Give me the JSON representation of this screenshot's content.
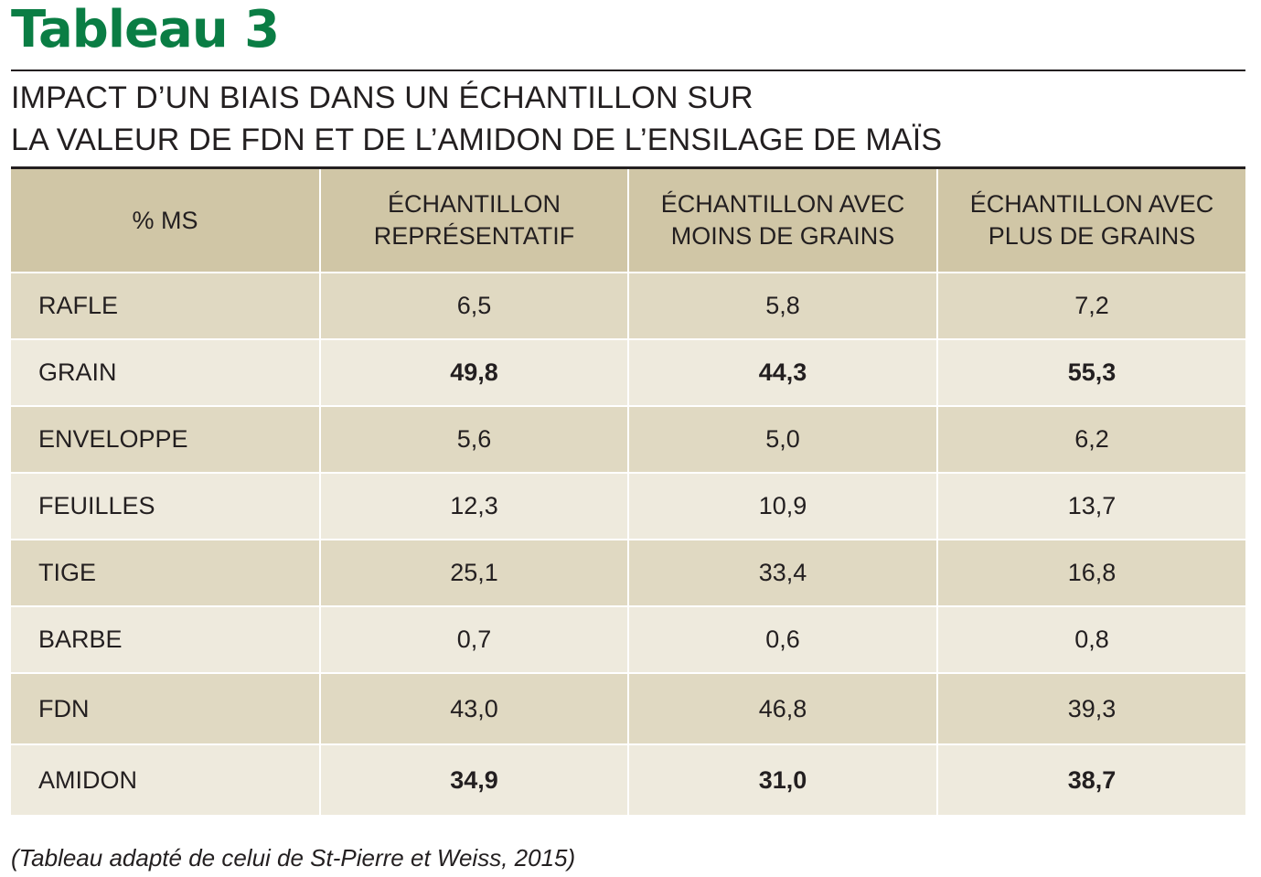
{
  "title": "Tableau 3",
  "subtitle": {
    "line1": "IMPACT D’UN BIAIS DANS UN ÉCHANTILLON SUR",
    "line2": "LA VALEUR DE FDN ET DE L’AMIDON DE L’ENSILAGE DE MAÏS"
  },
  "table": {
    "headers": [
      {
        "line1": "% MS",
        "line2": ""
      },
      {
        "line1": "ÉCHANTILLON",
        "line2": "REPRÉSENTATIF"
      },
      {
        "line1": "ÉCHANTILLON AVEC",
        "line2": "MOINS DE GRAINS"
      },
      {
        "line1": "ÉCHANTILLON AVEC",
        "line2": "PLUS DE GRAINS"
      }
    ],
    "rows": [
      {
        "label": "RAFLE",
        "values": [
          "6,5",
          "5,8",
          "7,2"
        ],
        "bold": false
      },
      {
        "label": "GRAIN",
        "values": [
          "49,8",
          "44,3",
          "55,3"
        ],
        "bold": true
      },
      {
        "label": "ENVELOPPE",
        "values": [
          "5,6",
          "5,0",
          "6,2"
        ],
        "bold": false
      },
      {
        "label": "FEUILLES",
        "values": [
          "12,3",
          "10,9",
          "13,7"
        ],
        "bold": false
      },
      {
        "label": "TIGE",
        "values": [
          "25,1",
          "33,4",
          "16,8"
        ],
        "bold": false
      },
      {
        "label": "BARBE",
        "values": [
          "0,7",
          "0,6",
          "0,8"
        ],
        "bold": false
      },
      {
        "label": "FDN",
        "values": [
          "43,0",
          "46,8",
          "39,3"
        ],
        "bold": false
      },
      {
        "label": "AMIDON",
        "values": [
          "34,9",
          "31,0",
          "38,7"
        ],
        "bold": true
      }
    ]
  },
  "footnote": "(Tableau adapté de celui de St-Pierre et Weiss, 2015)",
  "colors": {
    "title": "#0a7d44",
    "header_bg": "#d0c6a6",
    "row_dark": "#e0d9c2",
    "row_light": "#eeeadd"
  }
}
